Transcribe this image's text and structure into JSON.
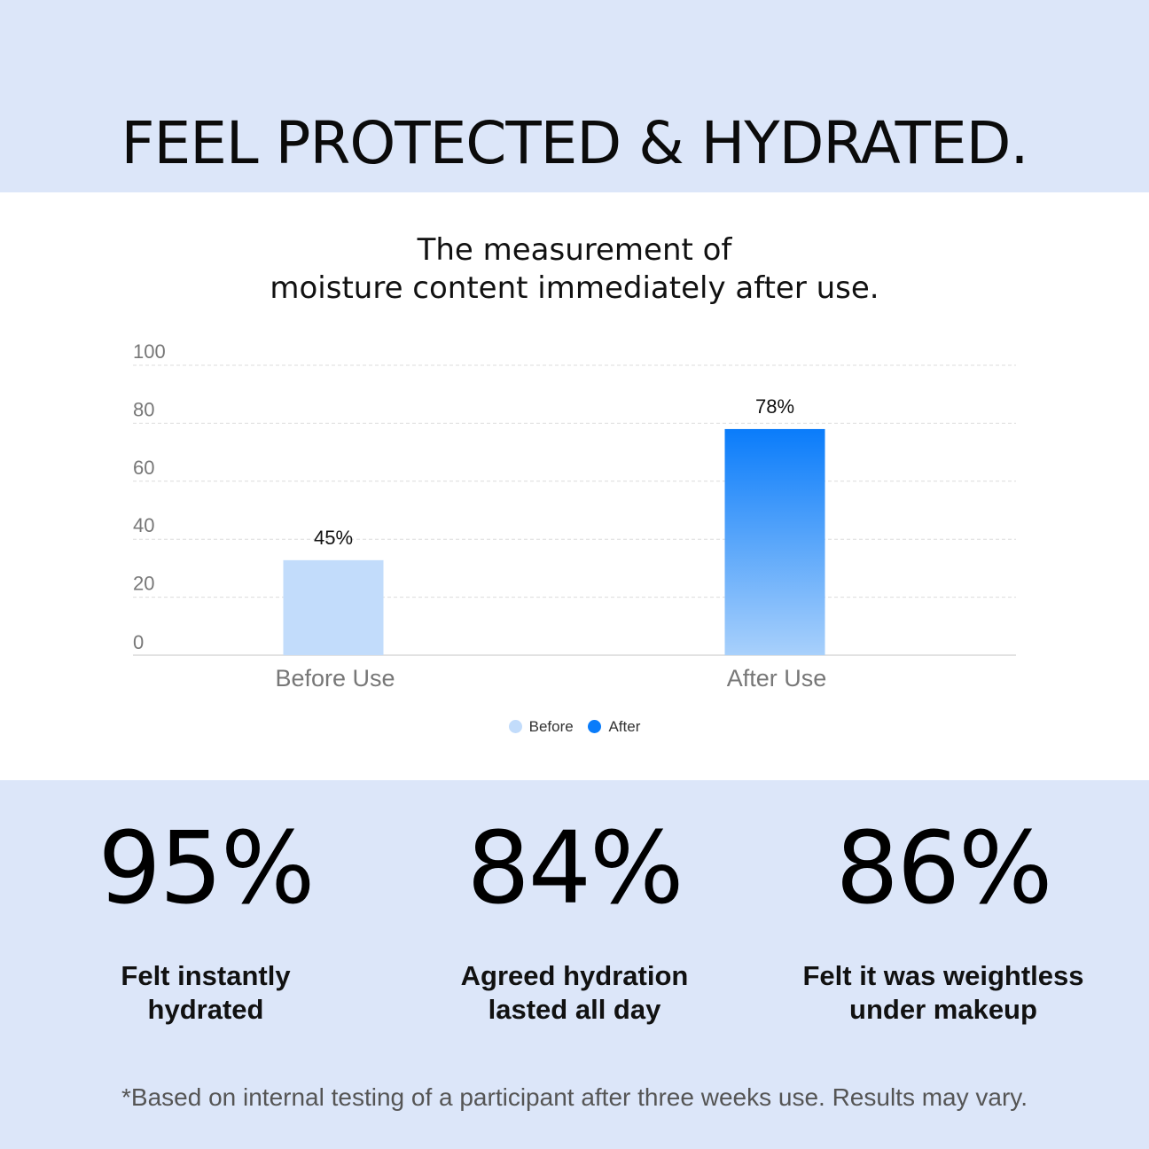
{
  "headline": "FEEL PROTECTED & HYDRATED.",
  "chart_data": {
    "type": "bar",
    "title_lines": [
      "The measurement of",
      "moisture content immediately after use."
    ],
    "categories": [
      "Before Use",
      "After Use"
    ],
    "values": [
      45,
      78
    ],
    "value_labels": [
      "45%",
      "78%"
    ],
    "ylim": [
      0,
      100
    ],
    "yticks": [
      0,
      20,
      40,
      60,
      80,
      100
    ],
    "grid": true,
    "legend_position": "bottom-center",
    "series": [
      {
        "name": "Before",
        "color": "#c2dcfb"
      },
      {
        "name": "After",
        "color": "#0a7cfa"
      }
    ]
  },
  "stats": [
    {
      "value": "95%",
      "label_lines": [
        "Felt instantly",
        "hydrated"
      ]
    },
    {
      "value": "84%",
      "label_lines": [
        "Agreed hydration",
        "lasted all day"
      ]
    },
    {
      "value": "86%",
      "label_lines": [
        "Felt it was weightless",
        "under makeup"
      ]
    }
  ],
  "footnote": "*Based on internal testing of a participant after three weeks use. Results may vary.",
  "colors": {
    "band": "#dce6f9",
    "panel": "#ffffff",
    "before_bar": "#c2dcfb",
    "after_bar_top": "#0a7cfa",
    "after_bar_bottom": "#a8d0fb"
  }
}
